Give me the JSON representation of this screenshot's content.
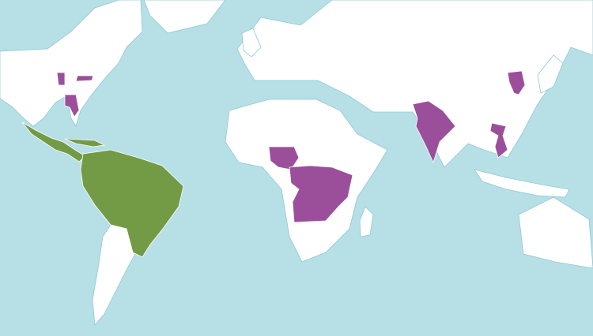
{
  "map": {
    "colors": {
      "ocean": "#b7dfe6",
      "land": "#ffffff",
      "coast": "#8fc9d4",
      "native": "#739a45",
      "introduced": "#9b4f9b"
    }
  }
}
